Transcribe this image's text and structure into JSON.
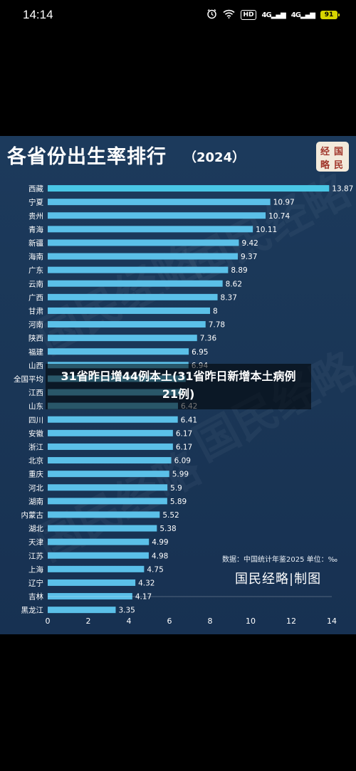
{
  "status_bar": {
    "time": "14:14",
    "network_label": "HD",
    "signal_1": "4G",
    "signal_2": "4G",
    "battery": "91",
    "icons": [
      "alarm-icon",
      "wifi-icon",
      "hd-icon",
      "signal-icon",
      "signal-icon",
      "battery-icon"
    ]
  },
  "poster": {
    "title": "各省份出生率排行",
    "year": "（2024）",
    "logo_chars": [
      "经",
      "国",
      "略",
      "民"
    ],
    "source": "数据：中国统计年鉴2025 单位：‰",
    "brand": "国民经略|制图",
    "watermark_text": "国民经略",
    "colors": {
      "background": "#1a3656",
      "bar": "#5bc0e8",
      "bar_top": "#49c6e5"
    }
  },
  "overlay": {
    "text": "31省昨日增44例本土(31省昨日新增本土病例21例)"
  },
  "chart_data": {
    "type": "bar",
    "orientation": "horizontal",
    "title": "各省份出生率排行（2024）",
    "xlabel": "",
    "ylabel": "",
    "xlim": [
      0,
      14
    ],
    "x_ticks": [
      "0",
      "2",
      "4",
      "6",
      "8",
      "10",
      "12",
      "14"
    ],
    "categories": [
      "西藏",
      "宁夏",
      "贵州",
      "青海",
      "新疆",
      "海南",
      "广东",
      "云南",
      "广西",
      "甘肃",
      "河南",
      "陕西",
      "福建",
      "山西",
      "全国平均",
      "江西",
      "山东",
      "四川",
      "安徽",
      "浙江",
      "北京",
      "重庆",
      "河北",
      "湖南",
      "内蒙古",
      "湖北",
      "天津",
      "江苏",
      "上海",
      "辽宁",
      "吉林",
      "黑龙江"
    ],
    "values": [
      13.87,
      10.97,
      10.74,
      10.11,
      9.42,
      9.37,
      8.89,
      8.62,
      8.37,
      8,
      7.78,
      7.36,
      6.95,
      6.94,
      6.8,
      6.6,
      6.42,
      6.41,
      6.17,
      6.17,
      6.09,
      5.99,
      5.9,
      5.89,
      5.52,
      5.38,
      4.99,
      4.98,
      4.75,
      4.32,
      4.17,
      3.35
    ],
    "value_labels": [
      "13.87",
      "10.97",
      "10.74",
      "10.11",
      "9.42",
      "9.37",
      "8.89",
      "8.62",
      "8.37",
      "8",
      "7.78",
      "7.36",
      "6.95",
      "6.94",
      "",
      "",
      "6.42",
      "6.41",
      "6.17",
      "6.17",
      "6.09",
      "5.99",
      "5.9",
      "5.89",
      "5.52",
      "5.38",
      "4.99",
      "4.98",
      "4.75",
      "4.32",
      "4.17",
      "3.35"
    ],
    "grid": false,
    "legend": "none"
  }
}
